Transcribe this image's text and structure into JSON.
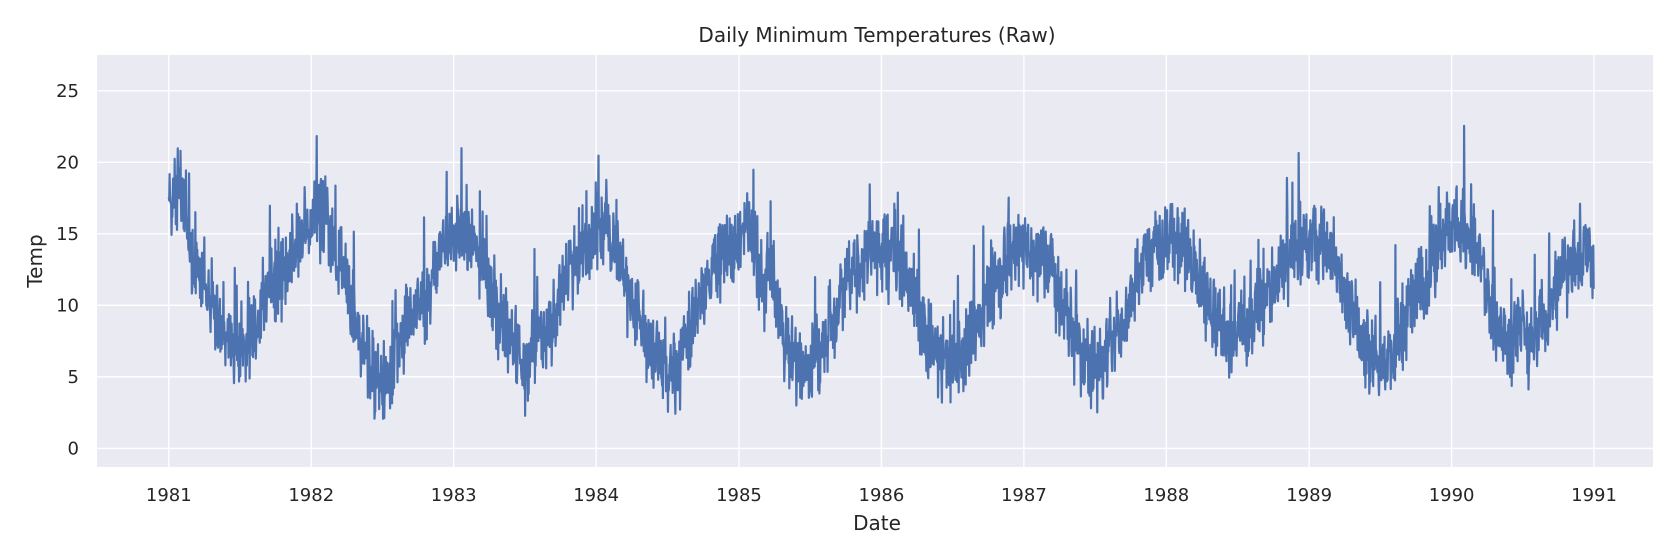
{
  "chart_data": {
    "type": "line",
    "title": "Daily Minimum Temperatures (Raw)",
    "xlabel": "Date",
    "ylabel": "Temp",
    "x_range": [
      "1980-07-01",
      "1991-06-01"
    ],
    "ylim": [
      -1.3,
      27.5
    ],
    "x_ticks": [
      {
        "date": "1981-01-01",
        "label": "1981"
      },
      {
        "date": "1982-01-01",
        "label": "1982"
      },
      {
        "date": "1983-01-01",
        "label": "1983"
      },
      {
        "date": "1984-01-01",
        "label": "1984"
      },
      {
        "date": "1985-01-01",
        "label": "1985"
      },
      {
        "date": "1986-01-01",
        "label": "1986"
      },
      {
        "date": "1987-01-01",
        "label": "1987"
      },
      {
        "date": "1988-01-01",
        "label": "1988"
      },
      {
        "date": "1989-01-01",
        "label": "1989"
      },
      {
        "date": "1990-01-01",
        "label": "1990"
      },
      {
        "date": "1991-01-01",
        "label": "1991"
      }
    ],
    "y_ticks": [
      {
        "value": 0,
        "label": "0"
      },
      {
        "value": 5,
        "label": "5"
      },
      {
        "value": 10,
        "label": "10"
      },
      {
        "value": 15,
        "label": "15"
      },
      {
        "value": 20,
        "label": "20"
      },
      {
        "value": 25,
        "label": "25"
      }
    ],
    "grid": true,
    "background_color": "#eaeaf2",
    "series": [
      {
        "color": "#4c72b0",
        "x": [
          "1981-01-01",
          "1981-02-01",
          "1981-03-01",
          "1981-04-01",
          "1981-05-01",
          "1981-06-01",
          "1981-07-01",
          "1981-08-01",
          "1981-09-01",
          "1981-10-01",
          "1981-11-01",
          "1981-12-01",
          "1982-01-01",
          "1982-02-01",
          "1982-03-01",
          "1982-04-01",
          "1982-05-01",
          "1982-06-01",
          "1982-07-01",
          "1982-08-01",
          "1982-09-01",
          "1982-10-01",
          "1982-11-01",
          "1982-12-01",
          "1983-01-01",
          "1983-02-01",
          "1983-03-01",
          "1983-04-01",
          "1983-05-01",
          "1983-06-01",
          "1983-07-01",
          "1983-08-01",
          "1983-09-01",
          "1983-10-01",
          "1983-11-01",
          "1983-12-01",
          "1984-01-01",
          "1984-02-01",
          "1984-03-01",
          "1984-04-01",
          "1984-05-01",
          "1984-06-01",
          "1984-07-01",
          "1984-08-01",
          "1984-09-01",
          "1984-10-01",
          "1984-11-01",
          "1984-12-01",
          "1985-01-01",
          "1985-02-01",
          "1985-03-01",
          "1985-04-01",
          "1985-05-01",
          "1985-06-01",
          "1985-07-01",
          "1985-08-01",
          "1985-09-01",
          "1985-10-01",
          "1985-11-01",
          "1985-12-01",
          "1986-01-01",
          "1986-02-01",
          "1986-03-01",
          "1986-04-01",
          "1986-05-01",
          "1986-06-01",
          "1986-07-01",
          "1986-08-01",
          "1986-09-01",
          "1986-10-01",
          "1986-11-01",
          "1986-12-01",
          "1987-01-01",
          "1987-02-01",
          "1987-03-01",
          "1987-04-01",
          "1987-05-01",
          "1987-06-01",
          "1987-07-01",
          "1987-08-01",
          "1987-09-01",
          "1987-10-01",
          "1987-11-01",
          "1987-12-01",
          "1988-01-01",
          "1988-02-01",
          "1988-03-01",
          "1988-04-01",
          "1988-05-01",
          "1988-06-01",
          "1988-07-01",
          "1988-08-01",
          "1988-09-01",
          "1988-10-01",
          "1988-11-01",
          "1988-12-01",
          "1989-01-01",
          "1989-02-01",
          "1989-03-01",
          "1989-04-01",
          "1989-05-01",
          "1989-06-01",
          "1989-07-01",
          "1989-08-01",
          "1989-09-01",
          "1989-10-01",
          "1989-11-01",
          "1989-12-01",
          "1990-01-01",
          "1990-02-01",
          "1990-03-01",
          "1990-04-01",
          "1990-05-01",
          "1990-06-01",
          "1990-07-01",
          "1990-08-01",
          "1990-09-01",
          "1990-10-01",
          "1990-11-01",
          "1990-12-01",
          "1990-12-31"
        ],
        "values": [
          17.7,
          17.7,
          13.5,
          12.4,
          9.5,
          7.8,
          6.9,
          8.0,
          10.2,
          12.1,
          12.9,
          14.6,
          15.7,
          16.4,
          14.0,
          11.8,
          8.4,
          5.7,
          4.8,
          6.0,
          8.8,
          10.2,
          11.2,
          14.7,
          15.0,
          15.6,
          13.7,
          11.1,
          9.0,
          7.6,
          5.3,
          7.1,
          8.4,
          11.0,
          12.7,
          14.6,
          15.2,
          14.4,
          13.2,
          10.4,
          8.0,
          5.5,
          5.8,
          6.3,
          8.8,
          10.6,
          13.0,
          13.9,
          14.4,
          15.1,
          11.9,
          11.5,
          7.5,
          6.2,
          5.9,
          6.9,
          8.7,
          11.4,
          12.8,
          14.2,
          14.0,
          13.9,
          12.4,
          10.2,
          7.4,
          6.5,
          6.3,
          6.4,
          8.9,
          10.8,
          12.1,
          13.2,
          14.3,
          13.4,
          12.8,
          10.4,
          8.4,
          6.1,
          5.5,
          6.6,
          8.5,
          10.4,
          12.3,
          14.5,
          14.3,
          14.6,
          13.5,
          11.0,
          8.8,
          8.2,
          8.4,
          8.7,
          10.2,
          11.6,
          12.6,
          14.1,
          14.4,
          14.7,
          13.7,
          11.0,
          8.7,
          6.5,
          6.0,
          6.6,
          8.2,
          11.1,
          11.9,
          14.5,
          15.8,
          14.9,
          14.7,
          11.3,
          8.0,
          7.8,
          7.7,
          7.7,
          9.4,
          11.6,
          12.6,
          14.0,
          13.5
        ],
        "noise": 2.6
      }
    ]
  }
}
